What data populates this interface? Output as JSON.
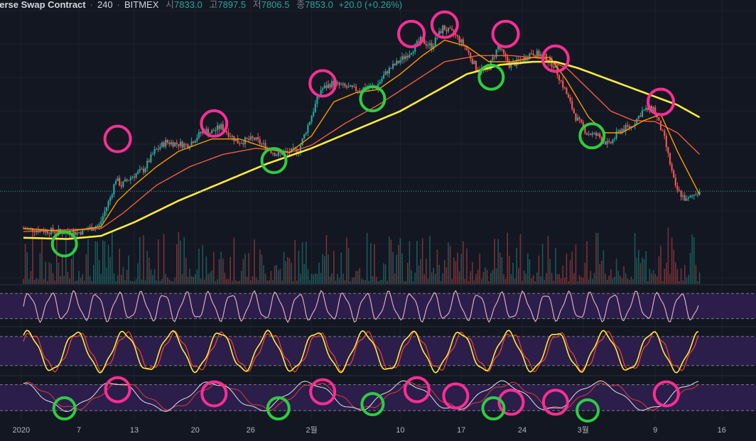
{
  "header": {
    "symbol": "verse Swap Contract",
    "interval": "240",
    "exchange": "BITMEX",
    "open_label": "시",
    "open": "7833.0",
    "high_label": "고",
    "high": "7897.5",
    "low_label": "저",
    "low": "7806.5",
    "close_label": "종",
    "close": "7853.0",
    "change": "+20.0 (+0.26%)"
  },
  "colors": {
    "background": "#131722",
    "grid": "#1e222d",
    "up": "#26a69a",
    "down": "#ef5350",
    "ema_fast": "#ff9800",
    "ema_mid": "#f05d3b",
    "ema_slow": "#ffeb3b",
    "osc_band": "#2f1f4f",
    "rsi": "#e0a9c5",
    "stoch_k": "#ffeb3b",
    "stoch_d": "#f44336",
    "third_k": "#e0e3eb",
    "third_d": "#e53935",
    "marker_top": "#ff2d95",
    "marker_bottom": "#2ecc40",
    "price_line": "#26a69a"
  },
  "chart_data": {
    "type": "candlestick",
    "x_tick_labels": [
      "2020",
      "7",
      "13",
      "20",
      "26",
      "2월",
      "10",
      "17",
      "24",
      "3월",
      "9",
      "16"
    ],
    "price_path": [
      [
        0,
        7250
      ],
      [
        3,
        7200
      ],
      [
        5,
        7180
      ],
      [
        7,
        7300
      ],
      [
        8,
        7750
      ],
      [
        8.5,
        8050
      ],
      [
        9,
        7950
      ],
      [
        10,
        8100
      ],
      [
        11,
        8200
      ],
      [
        12,
        8500
      ],
      [
        13,
        8650
      ],
      [
        15,
        8600
      ],
      [
        16.5,
        8850
      ],
      [
        17,
        8800
      ],
      [
        18,
        8900
      ],
      [
        19.5,
        8650
      ],
      [
        21,
        8700
      ],
      [
        23,
        8450
      ],
      [
        25,
        8520
      ],
      [
        26,
        9000
      ],
      [
        27,
        9500
      ],
      [
        28,
        9600
      ],
      [
        30,
        9500
      ],
      [
        32,
        9550
      ],
      [
        33,
        9800
      ],
      [
        34,
        9950
      ],
      [
        35,
        10100
      ],
      [
        36,
        10300
      ],
      [
        37,
        10200
      ],
      [
        38,
        10500
      ],
      [
        39,
        10400
      ],
      [
        40,
        10200
      ],
      [
        41,
        9850
      ],
      [
        42,
        9800
      ],
      [
        43,
        10200
      ],
      [
        44,
        9900
      ],
      [
        45,
        9950
      ],
      [
        46,
        10100
      ],
      [
        47,
        10050
      ],
      [
        48,
        9900
      ],
      [
        49,
        9500
      ],
      [
        50,
        9050
      ],
      [
        51,
        8800
      ],
      [
        52,
        8750
      ],
      [
        53,
        8600
      ],
      [
        54,
        8850
      ],
      [
        55,
        8900
      ],
      [
        56,
        9150
      ],
      [
        57,
        9200
      ],
      [
        58,
        8700
      ],
      [
        59,
        7900
      ],
      [
        60,
        7700
      ],
      [
        61,
        7850
      ]
    ],
    "ema_fast": [
      [
        0,
        7250
      ],
      [
        4,
        7200
      ],
      [
        7,
        7280
      ],
      [
        8.5,
        7700
      ],
      [
        10,
        7950
      ],
      [
        12,
        8250
      ],
      [
        14,
        8500
      ],
      [
        17,
        8700
      ],
      [
        19.5,
        8700
      ],
      [
        22,
        8550
      ],
      [
        24,
        8480
      ],
      [
        26,
        8750
      ],
      [
        28,
        9300
      ],
      [
        30,
        9450
      ],
      [
        32,
        9500
      ],
      [
        34,
        9750
      ],
      [
        36,
        10050
      ],
      [
        38,
        10300
      ],
      [
        40,
        10200
      ],
      [
        42,
        9950
      ],
      [
        44,
        9950
      ],
      [
        46,
        10020
      ],
      [
        47.5,
        10020
      ],
      [
        49,
        9650
      ],
      [
        51,
        9050
      ],
      [
        52.5,
        8800
      ],
      [
        54,
        8800
      ],
      [
        56,
        9000
      ],
      [
        57.5,
        9100
      ],
      [
        59,
        8500
      ],
      [
        61,
        7800
      ]
    ],
    "ema_mid": [
      [
        0,
        7200
      ],
      [
        4,
        7230
      ],
      [
        7,
        7250
      ],
      [
        9,
        7500
      ],
      [
        12,
        7950
      ],
      [
        15,
        8250
      ],
      [
        18,
        8450
      ],
      [
        21,
        8550
      ],
      [
        24,
        8480
      ],
      [
        26,
        8600
      ],
      [
        29,
        8950
      ],
      [
        32,
        9250
      ],
      [
        35,
        9600
      ],
      [
        38,
        9950
      ],
      [
        41,
        10050
      ],
      [
        44,
        10050
      ],
      [
        47,
        10000
      ],
      [
        49,
        9850
      ],
      [
        51,
        9500
      ],
      [
        53,
        9150
      ],
      [
        55,
        9000
      ],
      [
        57,
        8980
      ],
      [
        59,
        8800
      ],
      [
        61,
        8450
      ]
    ],
    "ema_slow": [
      [
        0,
        7100
      ],
      [
        4,
        7080
      ],
      [
        7,
        7130
      ],
      [
        10,
        7350
      ],
      [
        14,
        7700
      ],
      [
        18,
        8000
      ],
      [
        22,
        8300
      ],
      [
        26,
        8550
      ],
      [
        30,
        8850
      ],
      [
        34,
        9150
      ],
      [
        38,
        9550
      ],
      [
        40,
        9750
      ],
      [
        43,
        9900
      ],
      [
        46,
        9950
      ],
      [
        48,
        9950
      ],
      [
        50,
        9850
      ],
      [
        53,
        9650
      ],
      [
        56,
        9450
      ],
      [
        59,
        9250
      ],
      [
        61,
        9050
      ]
    ],
    "markers_top": [
      [
        8.5,
        8700
      ],
      [
        17.2,
        8950
      ],
      [
        27,
        9600
      ],
      [
        35,
        10400
      ],
      [
        38,
        10550
      ],
      [
        43.5,
        10400
      ],
      [
        48,
        10000
      ],
      [
        57.5,
        9300
      ]
    ],
    "markers_bottom": [
      [
        3.7,
        7000
      ],
      [
        22.6,
        8350
      ],
      [
        31.5,
        9350
      ],
      [
        42.2,
        9700
      ],
      [
        51.3,
        8750
      ]
    ],
    "oscillator_markers_top": [
      [
        8.5,
        0.3
      ],
      [
        17.2,
        0.4
      ],
      [
        27,
        0.35
      ],
      [
        35.5,
        0.3
      ],
      [
        39,
        0.45
      ],
      [
        44,
        0.6
      ],
      [
        48,
        0.6
      ],
      [
        58,
        0.4
      ]
    ],
    "oscillator_markers_bottom": [
      [
        3.7,
        0.95
      ],
      [
        23,
        0.95
      ],
      [
        31.5,
        0.85
      ],
      [
        42.4,
        0.95
      ],
      [
        50.9,
        1.0
      ]
    ]
  }
}
